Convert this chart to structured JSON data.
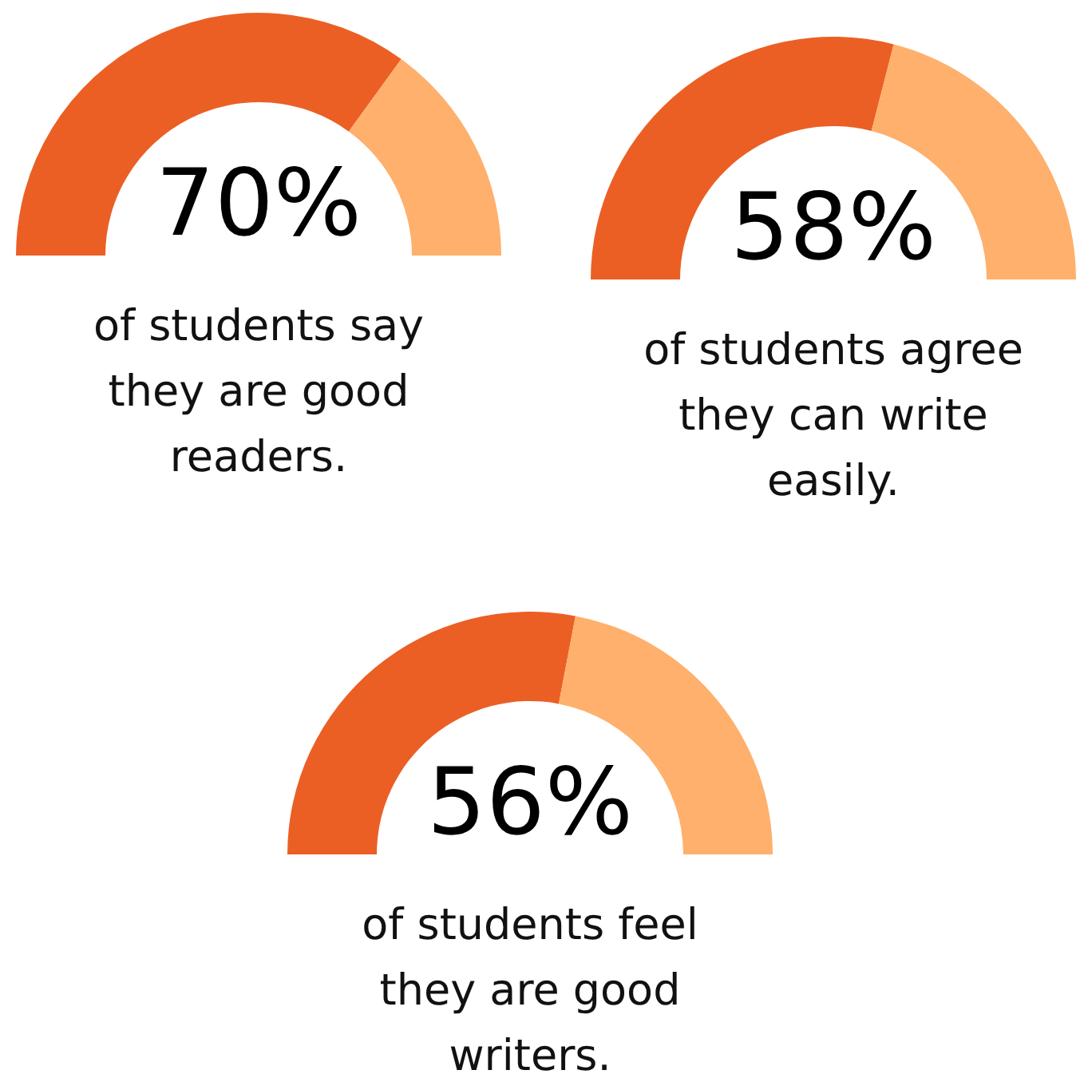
{
  "chart_data": [
    {
      "type": "donut",
      "categories": [
        null,
        null
      ],
      "values": [
        70,
        30
      ],
      "colors": [
        "#eb5f25",
        "#feb06c"
      ],
      "value_labels": [
        "70%",
        null
      ],
      "annotations": [
        "of students say they are good readers."
      ]
    },
    {
      "type": "donut",
      "categories": [
        null,
        null
      ],
      "values": [
        58,
        42
      ],
      "colors": [
        "#eb5f25",
        "#feb06c"
      ],
      "value_labels": [
        "58%",
        null
      ],
      "annotations": [
        "of students agree they can write easily."
      ]
    },
    {
      "type": "donut",
      "categories": [
        null,
        null
      ],
      "values": [
        56,
        44
      ],
      "colors": [
        "#eb5f25",
        "#feb06c"
      ],
      "value_labels": [
        "56%",
        null
      ],
      "annotations": [
        "of students feel they are good writers."
      ]
    }
  ]
}
